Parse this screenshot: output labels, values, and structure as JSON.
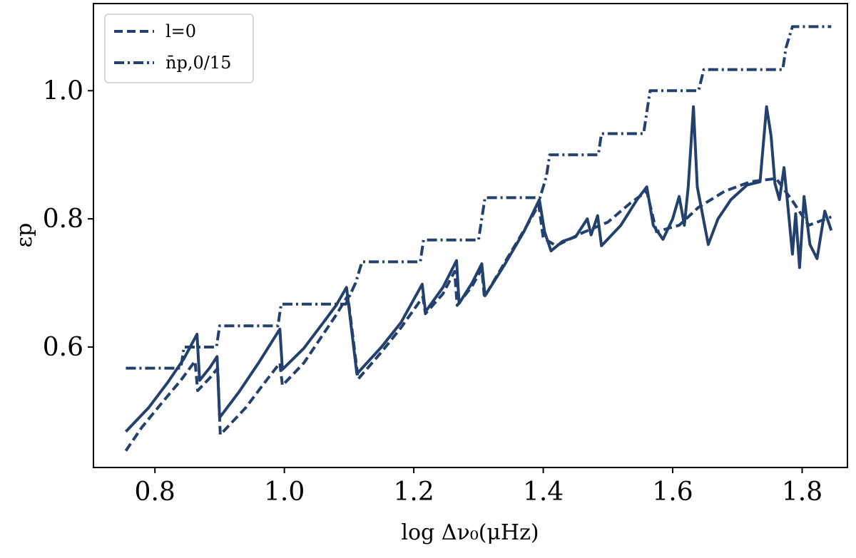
{
  "chart_data": {
    "type": "line",
    "xlabel": "log Δν₀(μHz)",
    "ylabel": "εp",
    "xlim": [
      0.705,
      1.87
    ],
    "ylim": [
      0.412,
      1.136
    ],
    "x_ticks": [
      0.8,
      1.0,
      1.2,
      1.4,
      1.6,
      1.8
    ],
    "x_tick_labels": [
      "0.8",
      "1.0",
      "1.2",
      "1.4",
      "1.6",
      "1.8"
    ],
    "y_ticks": [
      0.6,
      0.8,
      1.0
    ],
    "y_tick_labels": [
      "0.6",
      "0.8",
      "1.0"
    ],
    "grid": false,
    "legend": {
      "position": "top-left",
      "entries": [
        "l=0",
        "n̄p,0/15"
      ]
    },
    "line_color": "#22416e",
    "series": [
      {
        "name": "l=0",
        "style": "dashed",
        "points": [
          [
            0.755,
            0.438
          ],
          [
            0.78,
            0.475
          ],
          [
            0.81,
            0.512
          ],
          [
            0.84,
            0.548
          ],
          [
            0.862,
            0.578
          ],
          [
            0.866,
            0.532
          ],
          [
            0.885,
            0.552
          ],
          [
            0.897,
            0.567
          ],
          [
            0.901,
            0.463
          ],
          [
            0.94,
            0.505
          ],
          [
            0.97,
            0.545
          ],
          [
            0.993,
            0.575
          ],
          [
            0.997,
            0.54
          ],
          [
            1.03,
            0.575
          ],
          [
            1.06,
            0.62
          ],
          [
            1.08,
            0.65
          ],
          [
            1.098,
            0.68
          ],
          [
            1.114,
            0.55
          ],
          [
            1.15,
            0.592
          ],
          [
            1.18,
            0.63
          ],
          [
            1.214,
            0.678
          ],
          [
            1.218,
            0.652
          ],
          [
            1.245,
            0.683
          ],
          [
            1.263,
            0.718
          ],
          [
            1.267,
            0.665
          ],
          [
            1.29,
            0.695
          ],
          [
            1.305,
            0.722
          ],
          [
            1.309,
            0.678
          ],
          [
            1.35,
            0.748
          ],
          [
            1.375,
            0.79
          ],
          [
            1.393,
            0.822
          ],
          [
            1.4,
            0.77
          ],
          [
            1.42,
            0.758
          ],
          [
            1.46,
            0.778
          ],
          [
            1.5,
            0.795
          ],
          [
            1.535,
            0.825
          ],
          [
            1.56,
            0.843
          ],
          [
            1.575,
            0.78
          ],
          [
            1.61,
            0.79
          ],
          [
            1.64,
            0.818
          ],
          [
            1.68,
            0.843
          ],
          [
            1.72,
            0.858
          ],
          [
            1.76,
            0.863
          ],
          [
            1.785,
            0.828
          ],
          [
            1.81,
            0.79
          ],
          [
            1.845,
            0.803
          ]
        ]
      },
      {
        "name": "n̄p,0/15",
        "style": "dashdot",
        "points": [
          [
            0.755,
            0.567
          ],
          [
            0.84,
            0.567
          ],
          [
            0.845,
            0.6
          ],
          [
            0.895,
            0.6
          ],
          [
            0.9,
            0.633
          ],
          [
            0.99,
            0.633
          ],
          [
            0.995,
            0.667
          ],
          [
            1.095,
            0.667
          ],
          [
            1.11,
            0.7
          ],
          [
            1.12,
            0.733
          ],
          [
            1.21,
            0.733
          ],
          [
            1.215,
            0.767
          ],
          [
            1.3,
            0.767
          ],
          [
            1.31,
            0.833
          ],
          [
            1.395,
            0.833
          ],
          [
            1.405,
            0.867
          ],
          [
            1.41,
            0.9
          ],
          [
            1.485,
            0.9
          ],
          [
            1.49,
            0.933
          ],
          [
            1.555,
            0.933
          ],
          [
            1.565,
            1.0
          ],
          [
            1.64,
            1.0
          ],
          [
            1.648,
            1.033
          ],
          [
            1.77,
            1.033
          ],
          [
            1.775,
            1.067
          ],
          [
            1.785,
            1.1
          ],
          [
            1.845,
            1.1
          ]
        ]
      },
      {
        "name": "",
        "style": "solid",
        "points": [
          [
            0.755,
            0.468
          ],
          [
            0.79,
            0.505
          ],
          [
            0.82,
            0.545
          ],
          [
            0.845,
            0.582
          ],
          [
            0.865,
            0.62
          ],
          [
            0.869,
            0.548
          ],
          [
            0.885,
            0.568
          ],
          [
            0.896,
            0.585
          ],
          [
            0.9,
            0.49
          ],
          [
            0.93,
            0.53
          ],
          [
            0.96,
            0.575
          ],
          [
            0.993,
            0.628
          ],
          [
            0.997,
            0.565
          ],
          [
            1.03,
            0.598
          ],
          [
            1.06,
            0.638
          ],
          [
            1.08,
            0.665
          ],
          [
            1.096,
            0.693
          ],
          [
            1.112,
            0.558
          ],
          [
            1.15,
            0.6
          ],
          [
            1.18,
            0.638
          ],
          [
            1.213,
            0.698
          ],
          [
            1.218,
            0.655
          ],
          [
            1.245,
            0.693
          ],
          [
            1.266,
            0.735
          ],
          [
            1.27,
            0.668
          ],
          [
            1.29,
            0.7
          ],
          [
            1.305,
            0.73
          ],
          [
            1.31,
            0.68
          ],
          [
            1.34,
            0.728
          ],
          [
            1.37,
            0.78
          ],
          [
            1.394,
            0.83
          ],
          [
            1.402,
            0.78
          ],
          [
            1.412,
            0.75
          ],
          [
            1.43,
            0.765
          ],
          [
            1.45,
            0.772
          ],
          [
            1.468,
            0.8
          ],
          [
            1.474,
            0.775
          ],
          [
            1.484,
            0.805
          ],
          [
            1.49,
            0.758
          ],
          [
            1.52,
            0.79
          ],
          [
            1.545,
            0.83
          ],
          [
            1.56,
            0.85
          ],
          [
            1.57,
            0.79
          ],
          [
            1.585,
            0.768
          ],
          [
            1.6,
            0.8
          ],
          [
            1.61,
            0.835
          ],
          [
            1.618,
            0.79
          ],
          [
            1.624,
            0.85
          ],
          [
            1.632,
            0.975
          ],
          [
            1.638,
            0.85
          ],
          [
            1.655,
            0.76
          ],
          [
            1.67,
            0.8
          ],
          [
            1.69,
            0.83
          ],
          [
            1.715,
            0.853
          ],
          [
            1.735,
            0.858
          ],
          [
            1.745,
            0.975
          ],
          [
            1.752,
            0.93
          ],
          [
            1.758,
            0.855
          ],
          [
            1.765,
            0.83
          ],
          [
            1.772,
            0.88
          ],
          [
            1.778,
            0.82
          ],
          [
            1.785,
            0.745
          ],
          [
            1.79,
            0.808
          ],
          [
            1.796,
            0.724
          ],
          [
            1.803,
            0.835
          ],
          [
            1.812,
            0.76
          ],
          [
            1.823,
            0.738
          ],
          [
            1.835,
            0.812
          ],
          [
            1.845,
            0.782
          ]
        ]
      }
    ]
  }
}
